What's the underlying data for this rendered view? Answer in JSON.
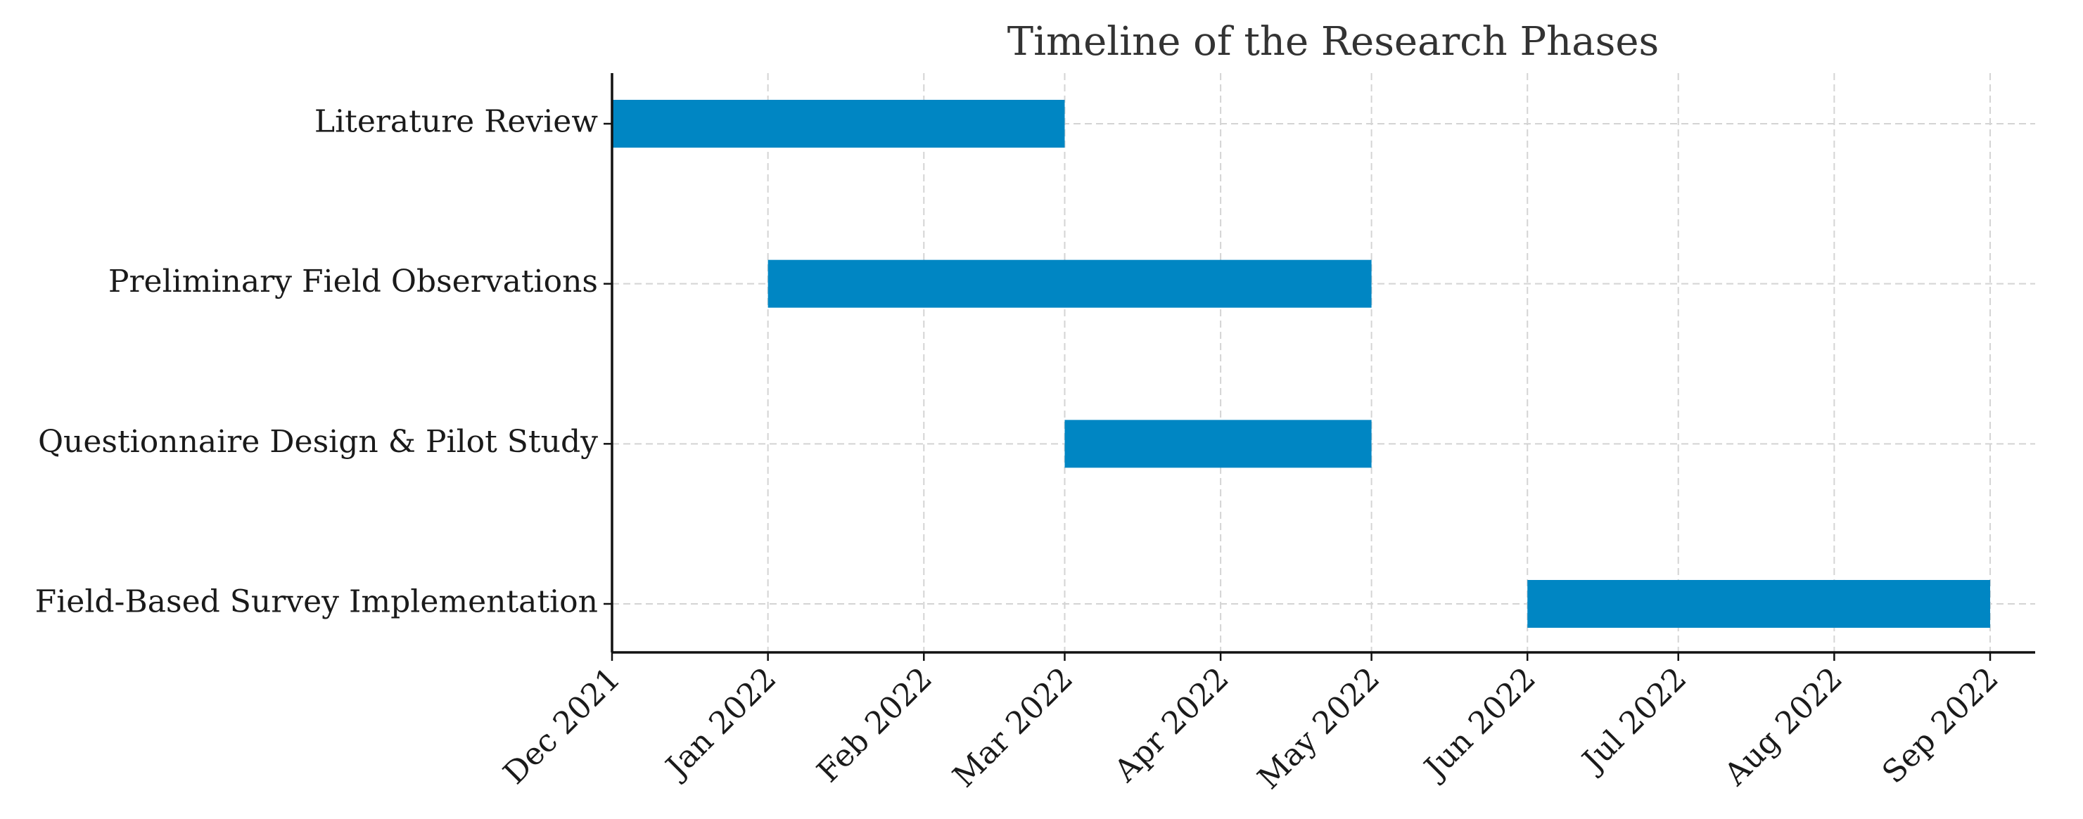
{
  "chart_data": {
    "type": "gantt",
    "title": "Timeline of the Research Phases",
    "categories": [
      "Literature Review",
      "Preliminary Field Observations",
      "Questionnaire Design & Pilot Study",
      "Field-Based Survey Implementation"
    ],
    "start": [
      "2021-12",
      "2022-01",
      "2022-03",
      "2022-06"
    ],
    "end": [
      "2022-02",
      "2022-04",
      "2022-04",
      "2022-08"
    ],
    "color": "#0086c3",
    "xlim": [
      "2021-12",
      "2022-09"
    ],
    "xticks": [
      {
        "value": "2021-12",
        "label": "Dec 2021"
      },
      {
        "value": "2022-01",
        "label": "Jan 2022"
      },
      {
        "value": "2022-02",
        "label": "Feb 2022"
      },
      {
        "value": "2022-03",
        "label": "Mar 2022"
      },
      {
        "value": "2022-04",
        "label": "Apr 2022"
      },
      {
        "value": "2022-05",
        "label": "May 2022"
      },
      {
        "value": "2022-06",
        "label": "Jun 2022"
      },
      {
        "value": "2022-07",
        "label": "Jul 2022"
      },
      {
        "value": "2022-08",
        "label": "Aug 2022"
      },
      {
        "value": "2022-09",
        "label": "Sep 2022"
      }
    ],
    "grid": true
  }
}
